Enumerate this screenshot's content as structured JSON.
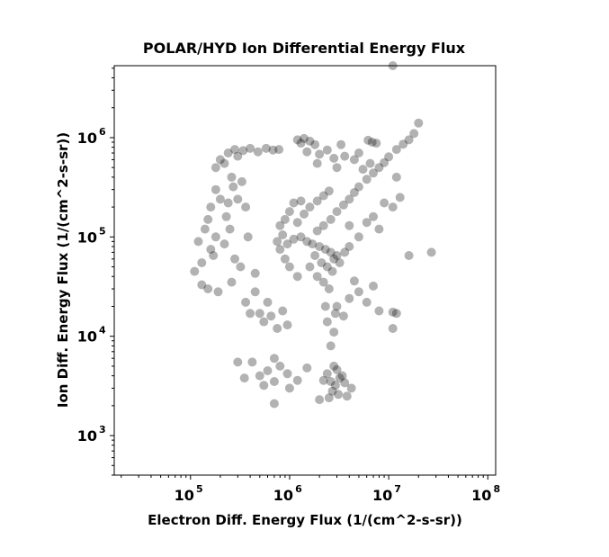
{
  "chart_data": {
    "type": "scatter",
    "title": "POLAR/HYD  Ion Differential Energy Flux",
    "xlabel": "Electron Diff. Energy Flux (1/(cm^2-s-sr))",
    "ylabel": "Ion Diff. Energy Flux (1/(cm^2-s-sr))",
    "xscale": "log",
    "yscale": "log",
    "xlim": [
      17000,
      120000000
    ],
    "ylim": [
      400,
      5300000
    ],
    "xticks": [
      {
        "value": 100000,
        "base": "10",
        "exp": "5"
      },
      {
        "value": 1000000,
        "base": "10",
        "exp": "6"
      },
      {
        "value": 10000000,
        "base": "10",
        "exp": "7"
      },
      {
        "value": 100000000,
        "base": "10",
        "exp": "8"
      }
    ],
    "yticks": [
      {
        "value": 1000,
        "base": "10",
        "exp": "3"
      },
      {
        "value": 10000,
        "base": "10",
        "exp": "4"
      },
      {
        "value": 100000,
        "base": "10",
        "exp": "5"
      },
      {
        "value": 1000000,
        "base": "10",
        "exp": "6"
      }
    ],
    "marker_color": "#000000",
    "marker_opacity": 0.3,
    "grid": false,
    "legend": "none",
    "points": [
      [
        1200000.0,
        950000.0
      ],
      [
        1400000.0,
        980000.0
      ],
      [
        1600000.0,
        920000.0
      ],
      [
        1800000.0,
        850000.0
      ],
      [
        1300000.0,
        880000.0
      ],
      [
        6200000.0,
        940000.0
      ],
      [
        6800000.0,
        900000.0
      ],
      [
        7500000.0,
        880000.0
      ],
      [
        18000000.0,
        1100000.0
      ],
      [
        16000000.0,
        950000.0
      ],
      [
        14000000.0,
        860000.0
      ],
      [
        12000000.0,
        760000.0
      ],
      [
        10000000.0,
        640000.0
      ],
      [
        9000000.0,
        560000.0
      ],
      [
        8000000.0,
        500000.0
      ],
      [
        7000000.0,
        440000.0
      ],
      [
        6000000.0,
        380000.0
      ],
      [
        5000000.0,
        320000.0
      ],
      [
        4500000.0,
        280000.0
      ],
      [
        4000000.0,
        240000.0
      ],
      [
        3500000.0,
        210000.0
      ],
      [
        3000000.0,
        180000.0
      ],
      [
        2600000.0,
        150000.0
      ],
      [
        2200000.0,
        130000.0
      ],
      [
        1900000.0,
        115000.0
      ],
      [
        11000000.0,
        5300000.0
      ],
      [
        20000000.0,
        1400000.0
      ],
      [
        27000000.0,
        70000.0
      ],
      [
        16000000.0,
        65000.0
      ],
      [
        12000000.0,
        17000.0
      ],
      [
        11000000.0,
        12000.0
      ],
      [
        11000000.0,
        17500.0
      ],
      [
        750000.0,
        90000.0
      ],
      [
        850000.0,
        105000.0
      ],
      [
        950000.0,
        85000.0
      ],
      [
        1100000.0,
        95000.0
      ],
      [
        1300000.0,
        100000.0
      ],
      [
        1500000.0,
        90000.0
      ],
      [
        1700000.0,
        85000.0
      ],
      [
        2000000.0,
        80000.0
      ],
      [
        2300000.0,
        75000.0
      ],
      [
        2600000.0,
        70000.0
      ],
      [
        3000000.0,
        65000.0
      ],
      [
        1800000.0,
        65000.0
      ],
      [
        2100000.0,
        55000.0
      ],
      [
        2400000.0,
        50000.0
      ],
      [
        2700000.0,
        45000.0
      ],
      [
        1600000.0,
        50000.0
      ],
      [
        1900000.0,
        40000.0
      ],
      [
        2200000.0,
        35000.0
      ],
      [
        2500000.0,
        30000.0
      ],
      [
        2800000.0,
        60000.0
      ],
      [
        3200000.0,
        55000.0
      ],
      [
        3600000.0,
        70000.0
      ],
      [
        4000000.0,
        80000.0
      ],
      [
        1200000.0,
        140000.0
      ],
      [
        1400000.0,
        170000.0
      ],
      [
        1600000.0,
        200000.0
      ],
      [
        1900000.0,
        230000.0
      ],
      [
        2200000.0,
        260000.0
      ],
      [
        2500000.0,
        290000.0
      ],
      [
        1300000.0,
        230000.0
      ],
      [
        900000.0,
        60000.0
      ],
      [
        800000.0,
        75000.0
      ],
      [
        1000000.0,
        50000.0
      ],
      [
        1200000.0,
        40000.0
      ],
      [
        2600000.0,
        3500.0
      ],
      [
        2900000.0,
        3200.0
      ],
      [
        3200000.0,
        3800.0
      ],
      [
        2400000.0,
        4200.0
      ],
      [
        3000000.0,
        4600.0
      ],
      [
        3400000.0,
        4000.0
      ],
      [
        2800000.0,
        5000.0
      ],
      [
        2200000.0,
        3600.0
      ],
      [
        3600000.0,
        3400.0
      ],
      [
        2700000.0,
        2800.0
      ],
      [
        3100000.0,
        2600.0
      ],
      [
        2500000.0,
        2400.0
      ],
      [
        3800000.0,
        2500.0
      ],
      [
        4200000.0,
        3000.0
      ],
      [
        2000000.0,
        2300.0
      ],
      [
        2600000.0,
        8000.0
      ],
      [
        2800000.0,
        11000.0
      ],
      [
        2400000.0,
        14000.0
      ],
      [
        2900000.0,
        17000.0
      ],
      [
        2300000.0,
        20000.0
      ],
      [
        500000.0,
        4000.0
      ],
      [
        600000.0,
        4500.0
      ],
      [
        700000.0,
        3500.0
      ],
      [
        800000.0,
        5000.0
      ],
      [
        420000.0,
        5500.0
      ],
      [
        350000.0,
        3800.0
      ],
      [
        550000.0,
        3200.0
      ],
      [
        950000.0,
        4200.0
      ],
      [
        1200000.0,
        3600.0
      ],
      [
        1500000.0,
        4800.0
      ],
      [
        700000.0,
        6000.0
      ],
      [
        300000.0,
        5500.0
      ],
      [
        700000.0,
        2100.0
      ],
      [
        1000000.0,
        3000.0
      ],
      [
        120000.0,
        90000.0
      ],
      [
        140000.0,
        120000.0
      ],
      [
        160000.0,
        75000.0
      ],
      [
        130000.0,
        55000.0
      ],
      [
        150000.0,
        150000.0
      ],
      [
        180000.0,
        100000.0
      ],
      [
        170000.0,
        65000.0
      ],
      [
        220000.0,
        85000.0
      ],
      [
        250000.0,
        120000.0
      ],
      [
        280000.0,
        60000.0
      ],
      [
        110000.0,
        45000.0
      ],
      [
        130000.0,
        33000.0
      ],
      [
        150000.0,
        30000.0
      ],
      [
        190000.0,
        28000.0
      ],
      [
        260000.0,
        35000.0
      ],
      [
        320000.0,
        50000.0
      ],
      [
        380000.0,
        100000.0
      ],
      [
        450000.0,
        43000.0
      ],
      [
        160000.0,
        200000.0
      ],
      [
        200000.0,
        240000.0
      ],
      [
        240000.0,
        220000.0
      ],
      [
        180000.0,
        300000.0
      ],
      [
        230000.0,
        160000.0
      ],
      [
        300000.0,
        240000.0
      ],
      [
        360000.0,
        200000.0
      ],
      [
        260000.0,
        400000.0
      ],
      [
        220000.0,
        550000.0
      ],
      [
        240000.0,
        700000.0
      ],
      [
        280000.0,
        760000.0
      ],
      [
        340000.0,
        740000.0
      ],
      [
        400000.0,
        780000.0
      ],
      [
        480000.0,
        720000.0
      ],
      [
        580000.0,
        780000.0
      ],
      [
        680000.0,
        750000.0
      ],
      [
        780000.0,
        760000.0
      ],
      [
        300000.0,
        650000.0
      ],
      [
        200000.0,
        600000.0
      ],
      [
        180000.0,
        500000.0
      ],
      [
        270000.0,
        320000.0
      ],
      [
        330000.0,
        360000.0
      ],
      [
        400000.0,
        17000.0
      ],
      [
        500000.0,
        17000.0
      ],
      [
        600000.0,
        22000.0
      ],
      [
        650000.0,
        16000.0
      ],
      [
        360000.0,
        22000.0
      ],
      [
        450000.0,
        28000.0
      ],
      [
        550000.0,
        14000.0
      ],
      [
        750000.0,
        12000.0
      ],
      [
        850000.0,
        18000.0
      ],
      [
        950000.0,
        13000.0
      ],
      [
        4000000.0,
        130000.0
      ],
      [
        5000000.0,
        100000.0
      ],
      [
        6000000.0,
        140000.0
      ],
      [
        7000000.0,
        160000.0
      ],
      [
        8000000.0,
        120000.0
      ],
      [
        9000000.0,
        220000.0
      ],
      [
        11000000.0,
        200000.0
      ],
      [
        13000000.0,
        250000.0
      ],
      [
        4500000.0,
        600000.0
      ],
      [
        5000000.0,
        700000.0
      ],
      [
        3600000.0,
        650000.0
      ],
      [
        3000000.0,
        500000.0
      ],
      [
        5500000.0,
        480000.0
      ],
      [
        6500000.0,
        550000.0
      ],
      [
        12000000.0,
        400000.0
      ],
      [
        3000000.0,
        20000.0
      ],
      [
        3500000.0,
        16000.0
      ],
      [
        4000000.0,
        24000.0
      ],
      [
        5000000.0,
        28000.0
      ],
      [
        6000000.0,
        22000.0
      ],
      [
        4500000.0,
        36000.0
      ],
      [
        7000000.0,
        32000.0
      ],
      [
        8000000.0,
        18000.0
      ],
      [
        1000000.0,
        180000.0
      ],
      [
        1100000.0,
        220000.0
      ],
      [
        900000.0,
        150000.0
      ],
      [
        800000.0,
        130000.0
      ],
      [
        2000000.0,
        680000.0
      ],
      [
        2400000.0,
        750000.0
      ],
      [
        2800000.0,
        620000.0
      ],
      [
        3300000.0,
        850000.0
      ],
      [
        1500000.0,
        720000.0
      ],
      [
        1900000.0,
        550000.0
      ]
    ]
  }
}
